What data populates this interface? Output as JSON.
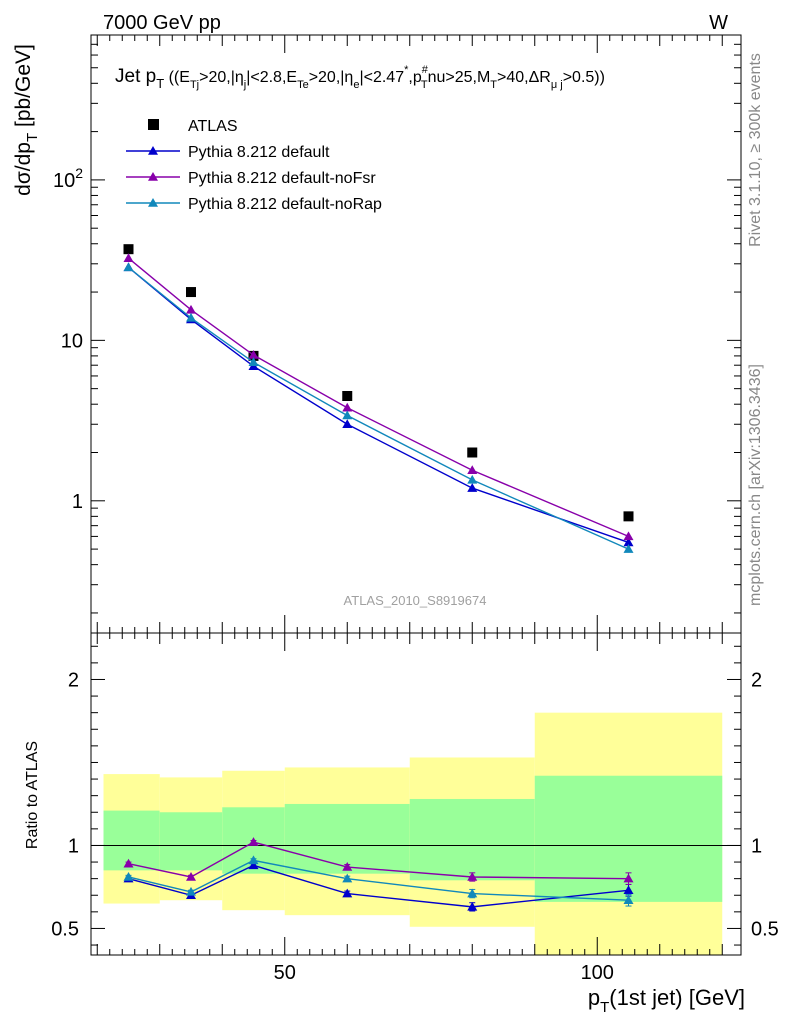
{
  "header": {
    "energy_label": "7000 GeV pp",
    "process_label": "W"
  },
  "side_labels": {
    "rivet": "Rivet 3.1.10, ≥ 300k events",
    "mcplots": "mcplots.cern.ch [arXiv:1306.3436]"
  },
  "watermark": "ATLAS_2010_S8919674",
  "colors": {
    "atlas": "#000000",
    "default": "#0000cc",
    "noFsr": "#8800aa",
    "noRap": "#1188bb",
    "band_outer": "#ffff99",
    "band_inner": "#99ff99"
  },
  "chart_data": [
    {
      "type": "scatter",
      "panel": "main",
      "title": "Jet pT ((ETj>20,|ηj|<2.8,ETe>20,|ηe|<2.47*,pT#nu>25,MT>40,ΔRμj>0.5))",
      "ylabel": "dσ/dpT [pb/GeV]",
      "yscale": "log",
      "ylim": [
        0.15,
        800
      ],
      "xlim": [
        19,
        123
      ],
      "y_ticks": [
        1,
        10,
        100
      ],
      "y_tick_labels": [
        "1",
        "10",
        "10²"
      ],
      "legend_position": "top-left",
      "x": [
        25,
        35,
        45,
        60,
        80,
        105
      ],
      "series": [
        {
          "name": "ATLAS",
          "key": "atlas",
          "marker": "square",
          "values": [
            37,
            20,
            8.0,
            4.5,
            2.0,
            0.8
          ]
        },
        {
          "name": "Pythia 8.212 default",
          "key": "default",
          "marker": "triangle",
          "values": [
            28.5,
            13.5,
            6.9,
            3.0,
            1.2,
            0.55
          ]
        },
        {
          "name": "Pythia 8.212 default-noFsr",
          "key": "noFsr",
          "marker": "triangle",
          "values": [
            32.5,
            15.5,
            8.1,
            3.8,
            1.55,
            0.6
          ]
        },
        {
          "name": "Pythia 8.212 default-noRap",
          "key": "noRap",
          "marker": "triangle",
          "values": [
            28.5,
            13.8,
            7.3,
            3.4,
            1.35,
            0.5
          ]
        }
      ]
    },
    {
      "type": "line",
      "panel": "ratio",
      "ylabel": "Ratio to ATLAS",
      "xlabel": "pT(1st jet) [GeV]",
      "xlim": [
        19,
        123
      ],
      "ylim": [
        0.34,
        2.28
      ],
      "x_ticks": [
        50,
        100
      ],
      "x_tick_labels": [
        "50",
        "100"
      ],
      "y_ticks": [
        0.5,
        1,
        2
      ],
      "y_tick_labels": [
        "0.5",
        "1",
        "2"
      ],
      "bins": [
        [
          21,
          30
        ],
        [
          30,
          40
        ],
        [
          40,
          50
        ],
        [
          50,
          70
        ],
        [
          70,
          90
        ],
        [
          90,
          120
        ]
      ],
      "band_outer": [
        [
          0.65,
          1.43
        ],
        [
          0.67,
          1.41
        ],
        [
          0.61,
          1.45
        ],
        [
          0.58,
          1.47
        ],
        [
          0.51,
          1.53
        ],
        [
          0.34,
          1.8
        ]
      ],
      "band_inner": [
        [
          0.85,
          1.21
        ],
        [
          0.85,
          1.2
        ],
        [
          0.83,
          1.23
        ],
        [
          0.83,
          1.25
        ],
        [
          0.79,
          1.28
        ],
        [
          0.66,
          1.42
        ]
      ],
      "x": [
        25,
        35,
        45,
        60,
        80,
        105
      ],
      "series": [
        {
          "name": "Pythia 8.212 default",
          "key": "default",
          "values": [
            0.8,
            0.7,
            0.88,
            0.71,
            0.63,
            0.73
          ],
          "errors": [
            0.01,
            0.01,
            0.01,
            0.015,
            0.025,
            0.035
          ]
        },
        {
          "name": "Pythia 8.212 default-noFsr",
          "key": "noFsr",
          "values": [
            0.89,
            0.81,
            1.02,
            0.87,
            0.81,
            0.8
          ],
          "errors": [
            0.01,
            0.01,
            0.01,
            0.015,
            0.025,
            0.035
          ]
        },
        {
          "name": "Pythia 8.212 default-noRap",
          "key": "noRap",
          "values": [
            0.81,
            0.72,
            0.91,
            0.8,
            0.71,
            0.67
          ],
          "errors": [
            0.01,
            0.01,
            0.01,
            0.015,
            0.025,
            0.035
          ]
        }
      ]
    }
  ]
}
